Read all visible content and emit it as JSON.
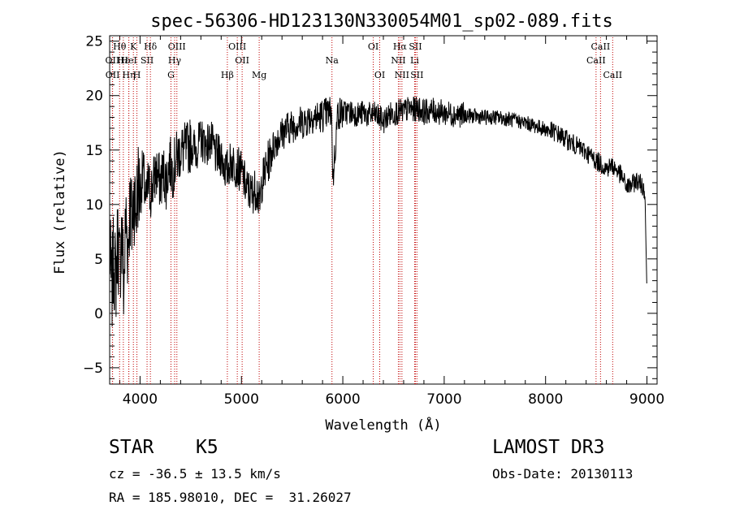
{
  "chart_data": {
    "type": "line",
    "title": "spec-56306-HD123130N330054M01_sp02-089.fits",
    "xlabel": "Wavelength (Å)",
    "ylabel": "Flux (relative)",
    "xlim": [
      3700,
      9100
    ],
    "ylim": [
      -6.5,
      25.5
    ],
    "xticks": [
      4000,
      5000,
      6000,
      7000,
      8000,
      9000
    ],
    "yticks": [
      -5,
      0,
      5,
      10,
      15,
      20,
      25
    ],
    "x_minor_step": 200,
    "y_minor_step": 1,
    "grid": false,
    "series": [
      {
        "name": "flux",
        "x": [
          3700,
          3720,
          3740,
          3760,
          3780,
          3800,
          3820,
          3840,
          3860,
          3880,
          3900,
          3920,
          3940,
          3960,
          3980,
          4000,
          4030,
          4060,
          4080,
          4100,
          4130,
          4160,
          4200,
          4230,
          4260,
          4290,
          4320,
          4350,
          4400,
          4450,
          4500,
          4550,
          4600,
          4650,
          4700,
          4750,
          4800,
          4850,
          4900,
          4950,
          5000,
          5050,
          5100,
          5150,
          5180,
          5200,
          5250,
          5300,
          5350,
          5400,
          5450,
          5500,
          5550,
          5600,
          5650,
          5700,
          5750,
          5800,
          5850,
          5890,
          5900,
          5950,
          6000,
          6050,
          6100,
          6150,
          6200,
          6250,
          6300,
          6350,
          6400,
          6450,
          6500,
          6550,
          6600,
          6650,
          6700,
          6750,
          6800,
          6850,
          6900,
          6950,
          7000,
          7100,
          7200,
          7300,
          7400,
          7500,
          7600,
          7700,
          7800,
          7900,
          8000,
          8100,
          8200,
          8300,
          8400,
          8500,
          8550,
          8600,
          8650,
          8700,
          8750,
          8800,
          8850,
          8900,
          8950,
          8980,
          9000
        ],
        "y": [
          6,
          2,
          5,
          3,
          7,
          4,
          8,
          2,
          9,
          6,
          10,
          8,
          11,
          9,
          12,
          11,
          13,
          10,
          12,
          11,
          12,
          13,
          12,
          13,
          12,
          14,
          13,
          14,
          15,
          15,
          15.5,
          15,
          16,
          15.5,
          15.8,
          14.5,
          14.5,
          13,
          14,
          13.5,
          13,
          11.5,
          11,
          11.5,
          9.8,
          12,
          13.5,
          15,
          16,
          16.5,
          17,
          17.2,
          17.5,
          17.5,
          17.8,
          18.1,
          18,
          18.2,
          18.4,
          18.5,
          12,
          18.4,
          18.4,
          18.5,
          18.4,
          18.3,
          18.4,
          18.2,
          18.3,
          18.1,
          17.6,
          18.2,
          18.4,
          18.5,
          18.5,
          18.8,
          18.7,
          18.8,
          18.5,
          18.6,
          18.6,
          18.5,
          18.4,
          18.3,
          18.2,
          18.1,
          18,
          18,
          17.9,
          17.7,
          17.5,
          17.2,
          16.9,
          16.6,
          16,
          15.4,
          14.8,
          14,
          13.7,
          13.3,
          13.6,
          13.2,
          12.6,
          11.6,
          11.8,
          12.2,
          11.8,
          11.3,
          1.8
        ]
      }
    ],
    "lines": [
      {
        "label": "Hθ",
        "x": 3798,
        "row": 1
      },
      {
        "label": "OII",
        "x": 3727,
        "row": 2
      },
      {
        "label": "OII",
        "x": 3729,
        "row": 3
      },
      {
        "label": "Hε",
        "x": 3835,
        "row": 2
      },
      {
        "label": "Hη",
        "x": 3889,
        "row": 3
      },
      {
        "label": "K",
        "x": 3934,
        "row": 1
      },
      {
        "label": "HeI",
        "x": 3889,
        "row": 2
      },
      {
        "label": "H",
        "x": 3969,
        "row": 3
      },
      {
        "label": "SII",
        "x": 4069,
        "row": 2
      },
      {
        "label": "Hδ",
        "x": 4102,
        "row": 1
      },
      {
        "label": "OIII",
        "x": 4363,
        "row": 1
      },
      {
        "label": "Hγ",
        "x": 4341,
        "row": 2
      },
      {
        "label": "G",
        "x": 4305,
        "row": 3
      },
      {
        "label": "Hβ",
        "x": 4861,
        "row": 3
      },
      {
        "label": "OIII",
        "x": 4959,
        "row": 1
      },
      {
        "label": "OII",
        "x": 5007,
        "row": 2
      },
      {
        "label": "Mg",
        "x": 5175,
        "row": 3
      },
      {
        "label": "Na",
        "x": 5893,
        "row": 2
      },
      {
        "label": "OI",
        "x": 6300,
        "row": 1
      },
      {
        "label": "OI",
        "x": 6364,
        "row": 3
      },
      {
        "label": "Hα",
        "x": 6563,
        "row": 1
      },
      {
        "label": "NII",
        "x": 6548,
        "row": 2
      },
      {
        "label": "NII",
        "x": 6583,
        "row": 3
      },
      {
        "label": "SII",
        "x": 6716,
        "row": 1
      },
      {
        "label": "Li",
        "x": 6708,
        "row": 2
      },
      {
        "label": "SII",
        "x": 6731,
        "row": 3
      },
      {
        "label": "CaII",
        "x": 8542,
        "row": 1
      },
      {
        "label": "CaII",
        "x": 8498,
        "row": 2
      },
      {
        "label": "CaII",
        "x": 8662,
        "row": 3
      }
    ]
  },
  "info": {
    "class": "STAR",
    "subclass": "K5",
    "survey": "LAMOST DR3",
    "cz": "cz = -36.5 ± 13.5 km/s",
    "obs_date": "Obs-Date: 20130113",
    "radec": "RA = 185.98010, DEC =  31.26027"
  }
}
